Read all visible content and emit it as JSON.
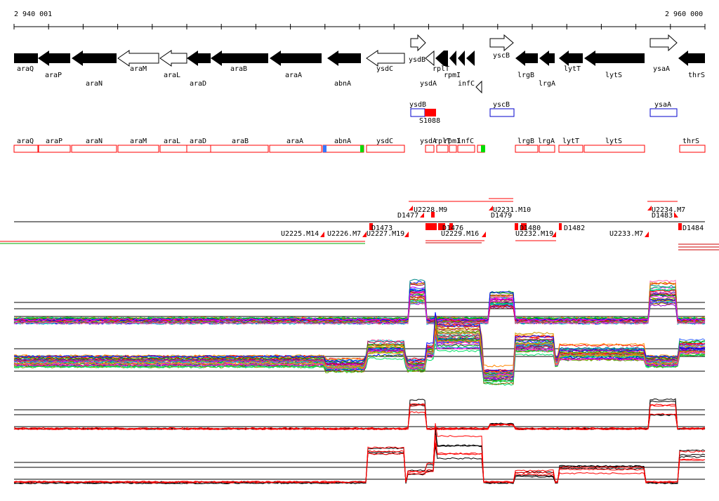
{
  "coord": {
    "start": "2 940 001",
    "end": "2 960 000"
  },
  "genes": [
    {
      "name": "araQ",
      "dir": "left",
      "style": "filled"
    },
    {
      "name": "araP",
      "dir": "left",
      "style": "filled"
    },
    {
      "name": "araN",
      "dir": "left",
      "style": "filled"
    },
    {
      "name": "araM",
      "dir": "left",
      "style": "open"
    },
    {
      "name": "araL",
      "dir": "left",
      "style": "open"
    },
    {
      "name": "araD",
      "dir": "left",
      "style": "filled"
    },
    {
      "name": "araB",
      "dir": "left",
      "style": "filled"
    },
    {
      "name": "araA",
      "dir": "left",
      "style": "filled"
    },
    {
      "name": "abnA",
      "dir": "left",
      "style": "filled"
    },
    {
      "name": "ysdC",
      "dir": "left",
      "style": "open"
    },
    {
      "name": "ysdB",
      "dir": "right",
      "style": "open"
    },
    {
      "name": "ysdA",
      "dir": "left",
      "style": "open"
    },
    {
      "name": "rplT",
      "dir": "left",
      "style": "filled"
    },
    {
      "name": "rpmI",
      "dir": "left",
      "style": "filled"
    },
    {
      "name": "infC",
      "dir": "left",
      "style": "filled"
    },
    {
      "name": "yscB",
      "dir": "right",
      "style": "open"
    },
    {
      "name": "lrgB",
      "dir": "left",
      "style": "filled"
    },
    {
      "name": "lrgA",
      "dir": "left",
      "style": "filled"
    },
    {
      "name": "lytT",
      "dir": "left",
      "style": "filled"
    },
    {
      "name": "lytS",
      "dir": "left",
      "style": "filled"
    },
    {
      "name": "ysaA",
      "dir": "right",
      "style": "open"
    },
    {
      "name": "thrS",
      "dir": "left",
      "style": "filled"
    }
  ],
  "small_features": [
    {
      "name": "ysdB",
      "sub": "S1088"
    },
    {
      "name": "yscB",
      "sub": ""
    },
    {
      "name": "ysaA",
      "sub": ""
    }
  ],
  "tiles": [
    "araQ",
    "araP",
    "araN",
    "araM",
    "araL",
    "araD",
    "araB",
    "araA",
    "abnA",
    "ysdC",
    "ysdA",
    "rplT",
    "rpmI",
    "infC",
    "lrgB",
    "lrgA",
    "lytT",
    "lytS",
    "thrS"
  ],
  "segments_above": [
    {
      "label": "U2228.M9"
    },
    {
      "label": "D1477"
    },
    {
      "label": "U2231.M10"
    },
    {
      "label": "D1479"
    },
    {
      "label": "U2234.M7"
    },
    {
      "label": "D1483"
    }
  ],
  "segments_below": [
    {
      "label": "U2225.M14"
    },
    {
      "label": "U2226.M7"
    },
    {
      "label": "D1473"
    },
    {
      "label": "U2227.M19"
    },
    {
      "label": "D1476"
    },
    {
      "label": "U2229.M16"
    },
    {
      "label": "D1480"
    },
    {
      "label": "U2232.M19"
    },
    {
      "label": "D1482"
    },
    {
      "label": "U2233.M7"
    },
    {
      "label": "D1484"
    }
  ],
  "colors": {
    "gene_fill": "#000000",
    "track_red": "#ff0000",
    "feature_blue": "#0000cc",
    "marker_green": "#00dd00"
  }
}
